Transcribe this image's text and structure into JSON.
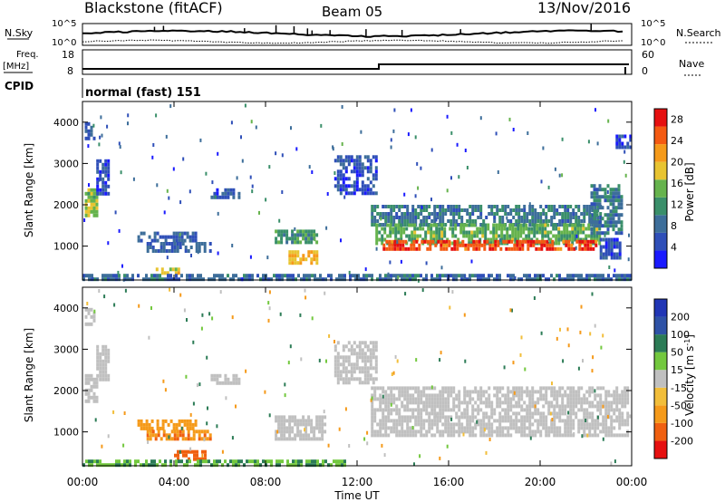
{
  "header": {
    "site": "Blackstone (fitACF)",
    "beam": "Beam 05",
    "date": "13/Nov/2016"
  },
  "top_panels": {
    "nsky_label": "N.Sky",
    "nsearch_label": "N.Search",
    "left_hi": "10^5",
    "left_lo": "10^0",
    "right_hi": "10^5",
    "right_lo": "10^0",
    "freq_label": "Freq.",
    "freq_unit": "[MHz]",
    "freq_hi": "18",
    "freq_lo": "8",
    "nave_label": "Nave",
    "nave_hi": "60",
    "nave_lo": "0",
    "cpid_label": "CPID",
    "cpid_value": "normal (fast) 151"
  },
  "colors": {
    "power_scale": [
      "#1a1aff",
      "#2f4fb8",
      "#3d6e9a",
      "#3a8f6a",
      "#66b34d",
      "#e8c431",
      "#f59a1a",
      "#f45a12",
      "#e61010"
    ],
    "velocity_scale": [
      "#2136b5",
      "#2e52a6",
      "#2c7c56",
      "#73c83e",
      "#c0c0c0",
      "#f2be3a",
      "#f59a1a",
      "#f06010",
      "#e61010"
    ]
  },
  "chart_data": [
    {
      "type": "heatmap",
      "name": "power",
      "xlabel": "Time UT",
      "ylabel": "Slant Range [km]",
      "xlim": [
        0,
        24
      ],
      "ylim": [
        180,
        4500
      ],
      "x_ticks": [
        "00:00",
        "04:00",
        "08:00",
        "12:00",
        "16:00",
        "20:00",
        "00:00"
      ],
      "y_ticks": [
        1000,
        2000,
        3000,
        4000
      ],
      "colorbar_label": "Power [dB]",
      "colorbar_ticks": [
        4,
        8,
        12,
        16,
        20,
        24,
        28
      ],
      "colorbar_range": [
        0,
        30
      ],
      "regions": [
        {
          "t0": 0.1,
          "t1": 0.6,
          "r0": 1700,
          "r1": 2400,
          "v": 16
        },
        {
          "t0": 0.1,
          "t1": 0.5,
          "r0": 3600,
          "r1": 4000,
          "v": 6
        },
        {
          "t0": 0.6,
          "t1": 1.1,
          "r0": 2300,
          "r1": 3100,
          "v": 5
        },
        {
          "t0": 2.4,
          "t1": 5.0,
          "r0": 1150,
          "r1": 1350,
          "v": 6
        },
        {
          "t0": 2.8,
          "t1": 5.6,
          "r0": 900,
          "r1": 1100,
          "v": 7
        },
        {
          "t0": 5.6,
          "t1": 6.8,
          "r0": 2200,
          "r1": 2400,
          "v": 5
        },
        {
          "t0": 8.4,
          "t1": 10.2,
          "r0": 1050,
          "r1": 1400,
          "v": 12
        },
        {
          "t0": 9.0,
          "t1": 10.2,
          "r0": 550,
          "r1": 900,
          "v": 20
        },
        {
          "t0": 3.2,
          "t1": 4.2,
          "r0": 380,
          "r1": 480,
          "v": 18
        },
        {
          "t0": 11.0,
          "t1": 12.8,
          "r0": 2300,
          "r1": 3200,
          "v": 5
        },
        {
          "t0": 12.6,
          "t1": 22.6,
          "r0": 1550,
          "r1": 2000,
          "v": 9
        },
        {
          "t0": 12.8,
          "t1": 22.6,
          "r0": 1100,
          "r1": 1550,
          "v": 14
        },
        {
          "t0": 13.0,
          "t1": 22.4,
          "r0": 900,
          "r1": 1150,
          "v": 26
        },
        {
          "t0": 22.2,
          "t1": 23.6,
          "r0": 1300,
          "r1": 2500,
          "v": 9
        },
        {
          "t0": 22.6,
          "t1": 23.5,
          "r0": 700,
          "r1": 1200,
          "v": 5
        },
        {
          "t0": 23.3,
          "t1": 23.9,
          "r0": 3400,
          "r1": 3700,
          "v": 5
        },
        {
          "t0": 0.0,
          "t1": 24.0,
          "r0": 200,
          "r1": 330,
          "v": 8
        }
      ]
    },
    {
      "type": "heatmap",
      "name": "velocity",
      "xlabel": "Time UT",
      "ylabel": "Slant Range [km]",
      "xlim": [
        0,
        24
      ],
      "ylim": [
        180,
        4500
      ],
      "x_ticks": [
        "00:00",
        "04:00",
        "08:00",
        "12:00",
        "16:00",
        "20:00",
        "00:00"
      ],
      "y_ticks": [
        1000,
        2000,
        3000,
        4000
      ],
      "colorbar_label": "Velocity [m s^-1]",
      "colorbar_ticks": [
        200,
        100,
        50,
        15,
        -15,
        -50,
        -100,
        -200
      ],
      "regions": [
        {
          "t0": 0.1,
          "t1": 0.6,
          "r0": 1700,
          "r1": 2400,
          "v": 0
        },
        {
          "t0": 0.1,
          "t1": 0.5,
          "r0": 3600,
          "r1": 4000,
          "v": 0
        },
        {
          "t0": 0.6,
          "t1": 1.1,
          "r0": 2300,
          "r1": 3100,
          "v": 0
        },
        {
          "t0": 2.4,
          "t1": 5.0,
          "r0": 1100,
          "r1": 1300,
          "v": -60
        },
        {
          "t0": 2.8,
          "t1": 5.6,
          "r0": 850,
          "r1": 1050,
          "v": -70
        },
        {
          "t0": 5.6,
          "t1": 6.8,
          "r0": 2200,
          "r1": 2400,
          "v": 0
        },
        {
          "t0": 8.4,
          "t1": 10.6,
          "r0": 800,
          "r1": 1400,
          "v": 0
        },
        {
          "t0": 4.0,
          "t1": 5.4,
          "r0": 380,
          "r1": 560,
          "v": -90
        },
        {
          "t0": 11.0,
          "t1": 12.8,
          "r0": 2200,
          "r1": 3200,
          "v": 0
        },
        {
          "t0": 12.6,
          "t1": 23.8,
          "r0": 900,
          "r1": 2100,
          "v": 0
        },
        {
          "t0": 0.0,
          "t1": 11.5,
          "r0": 200,
          "r1": 330,
          "v": 30
        }
      ]
    }
  ]
}
